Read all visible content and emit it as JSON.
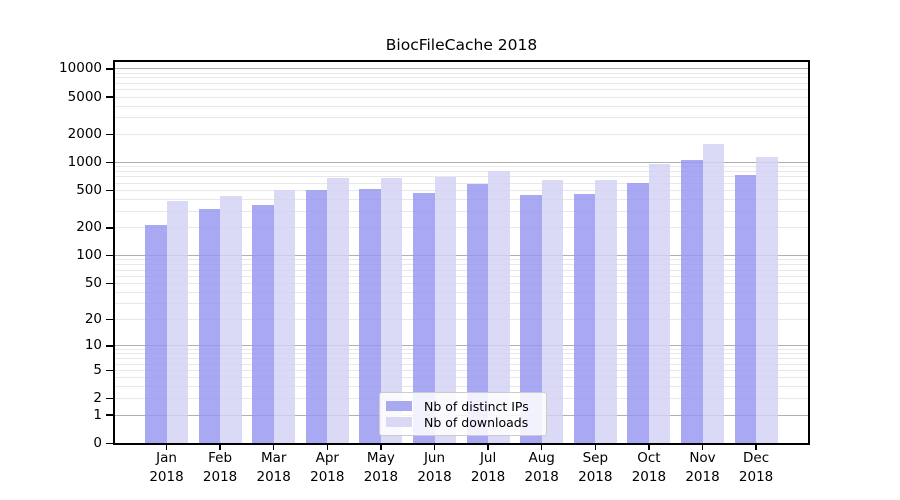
{
  "title": "BiocFileCache 2018",
  "chart_data": {
    "type": "bar",
    "title": "BiocFileCache 2018",
    "categories": [
      "Jan",
      "Feb",
      "Mar",
      "Apr",
      "May",
      "Jun",
      "Jul",
      "Aug",
      "Sep",
      "Oct",
      "Nov",
      "Dec"
    ],
    "year": "2018",
    "series": [
      {
        "name": "Nb of distinct IPs",
        "color": "rgba(150,150,240,0.82)",
        "legend_color": "#a9a9f1",
        "values": [
          214,
          312,
          345,
          500,
          512,
          463,
          585,
          450,
          455,
          600,
          1045,
          735
        ]
      },
      {
        "name": "Nb of downloads",
        "color": "rgba(210,210,245,0.82)",
        "legend_color": "#d9d9f6",
        "values": [
          384,
          430,
          508,
          678,
          680,
          700,
          798,
          640,
          640,
          957,
          1578,
          1125
        ]
      }
    ],
    "y_scale": "log1p",
    "y_ticks": [
      0,
      1,
      2,
      5,
      10,
      20,
      50,
      100,
      200,
      500,
      1000,
      2000,
      5000,
      10000
    ],
    "y_max": 12000,
    "xlabel": "",
    "ylabel": "",
    "grid": "horizontal major (decades) + minor (2-9 per decade)",
    "legend_position": "inside lower-center"
  }
}
